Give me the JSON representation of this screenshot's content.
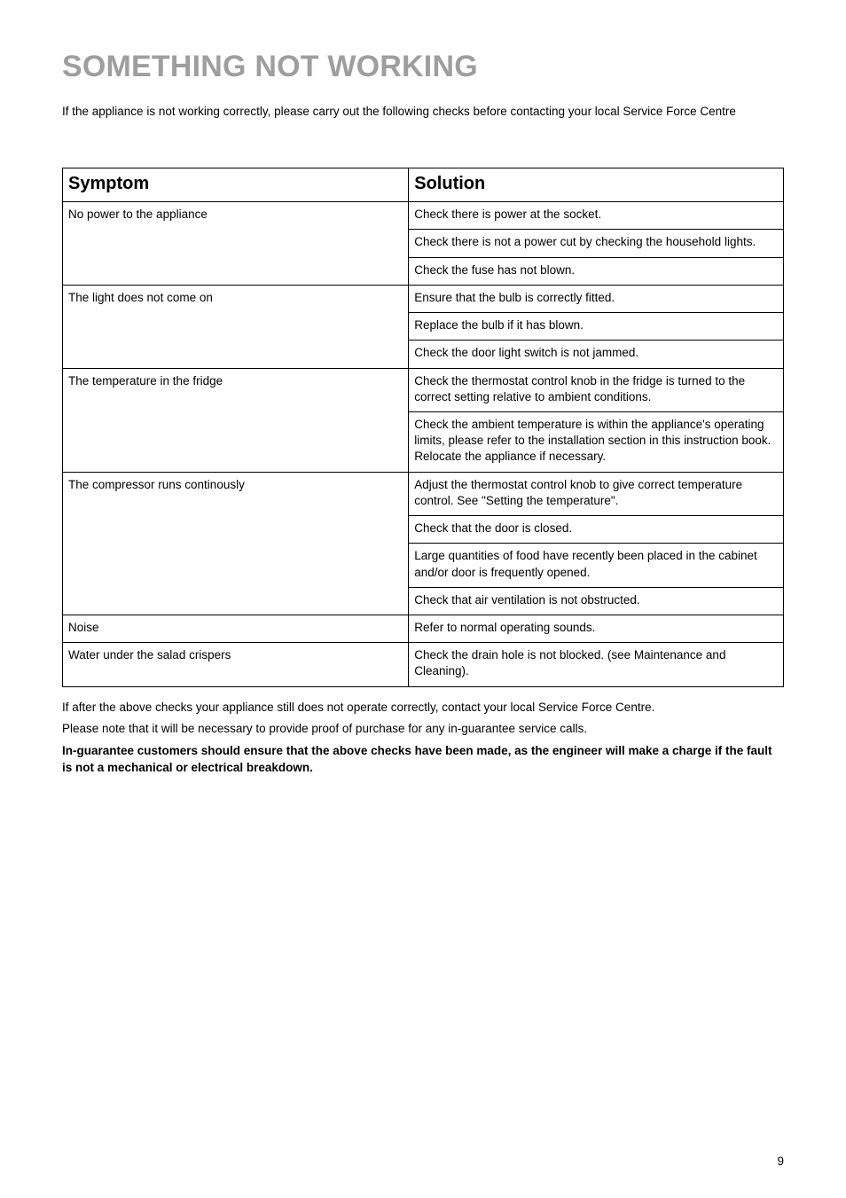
{
  "title": "SOMETHING NOT WORKING",
  "intro": "If the appliance is not working correctly, please carry out the following checks before contacting your local Service Force Centre",
  "table": {
    "headers": {
      "symptom": "Symptom",
      "solution": "Solution"
    },
    "rows": [
      {
        "symptomSpan": 3,
        "symptom": "No power to the appliance",
        "solution": "Check there is power at the socket."
      },
      {
        "solution": "Check there is not a power cut by checking the household lights."
      },
      {
        "solution": "Check the fuse has not blown."
      },
      {
        "symptomSpan": 3,
        "symptom": "The light does not come on",
        "solution": "Ensure that the bulb is correctly fitted."
      },
      {
        "solution": "Replace the bulb if it has blown."
      },
      {
        "solution": "Check the door light switch is not jammed."
      },
      {
        "symptomSpan": 2,
        "symptom": "The temperature in the fridge",
        "solution": "Check the thermostat control knob in the fridge is turned to the correct setting relative to ambient conditions."
      },
      {
        "solution": "Check the ambient temperature is within the appliance's operating limits, please refer to the installation section in this instruction book. Relocate the appliance if necessary."
      },
      {
        "symptomSpan": 4,
        "symptom": "The compressor runs continously",
        "solution": "Adjust the thermostat control knob to give correct temperature control. See \"Setting the temperature\"."
      },
      {
        "solution": "Check that the door is closed."
      },
      {
        "solution": "Large quantities of food have recently been placed in the cabinet and/or door is frequently opened."
      },
      {
        "solution": "Check that air ventilation is not obstructed."
      },
      {
        "symptomSpan": 1,
        "symptom": "Noise",
        "solution": "Refer to normal operating sounds."
      },
      {
        "symptomSpan": 1,
        "symptom": "Water under the salad crispers",
        "solution": "Check the drain hole is not blocked. (see Maintenance and Cleaning)."
      }
    ]
  },
  "notes": {
    "p1": "If after the above checks your appliance still does not operate correctly, contact your local Service Force Centre.",
    "p2": "Please note that it will be necessary to provide proof of purchase for any in-guarantee service calls.",
    "p3": "In-guarantee customers should ensure that the above checks have been made, as the engineer will make a charge if the fault is not a mechanical or electrical breakdown."
  },
  "pageNumber": "9"
}
